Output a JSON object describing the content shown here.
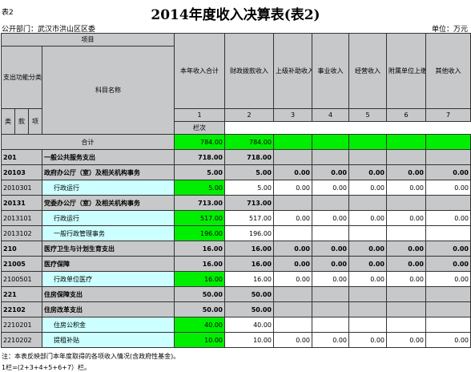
{
  "header": {
    "table_id": "表2",
    "title": "2014年度收入决算表(表2)",
    "department": "公开部门：武汉市洪山区区委",
    "unit": "单位：万元"
  },
  "columns": {
    "item": "项目",
    "func_code": "支出功能分类科目编码",
    "subject_name": "科目名称",
    "total": "本年收入合计",
    "fiscal": "财政拨款收入",
    "superior": "上级补助收入",
    "business": "事业收入",
    "operating": "经营收入",
    "affiliated": "附属单位上缴收入",
    "other": "其他收入",
    "lei": "类",
    "kuan": "款",
    "xiang": "项",
    "col_label": "栏次",
    "col_numbers": [
      "1",
      "2",
      "3",
      "4",
      "5",
      "6",
      "7"
    ]
  },
  "totals": {
    "label": "合计",
    "values": [
      "784.00",
      "784.00",
      "",
      "",
      "",
      "",
      ""
    ]
  },
  "rows": [
    {
      "code": "201",
      "name": "一般公共服务支出",
      "values": [
        "718.00",
        "718.00",
        "",
        "",
        "",
        "",
        ""
      ],
      "level": 1
    },
    {
      "code": "20103",
      "name": "政府办公厅（室）及相关机构事务",
      "values": [
        "5.00",
        "5.00",
        "0.00",
        "0.00",
        "0.00",
        "0.00",
        "0.00"
      ],
      "level": 2
    },
    {
      "code": "2010301",
      "name": "行政运行",
      "values": [
        "5.00",
        "5.00",
        "0.00",
        "0.00",
        "0.00",
        "0.00",
        "0.00"
      ],
      "level": 3
    },
    {
      "code": "20131",
      "name": "党委办公厅（室）及相关机构事务",
      "values": [
        "713.00",
        "713.00",
        "",
        "",
        "",
        "",
        ""
      ],
      "level": 2
    },
    {
      "code": "2013101",
      "name": "行政运行",
      "values": [
        "517.00",
        "517.00",
        "0.00",
        "0.00",
        "0.00",
        "0.00",
        "0.00"
      ],
      "level": 3
    },
    {
      "code": "2013102",
      "name": "一般行政管理事务",
      "values": [
        "196.00",
        "196.00",
        "",
        "",
        "",
        "",
        ""
      ],
      "level": 3
    },
    {
      "code": "210",
      "name": "医疗卫生与计划生育支出",
      "values": [
        "16.00",
        "16.00",
        "0.00",
        "0.00",
        "0.00",
        "0.00",
        "0.00"
      ],
      "level": 1
    },
    {
      "code": "21005",
      "name": "医疗保障",
      "values": [
        "16.00",
        "16.00",
        "0.00",
        "0.00",
        "0.00",
        "0.00",
        "0.00"
      ],
      "level": 2
    },
    {
      "code": "2100501",
      "name": "行政单位医疗",
      "values": [
        "16.00",
        "16.00",
        "0.00",
        "0.00",
        "0.00",
        "0.00",
        "0.00"
      ],
      "level": 3
    },
    {
      "code": "221",
      "name": "住房保障支出",
      "values": [
        "50.00",
        "50.00",
        "",
        "",
        "",
        "",
        ""
      ],
      "level": 1
    },
    {
      "code": "22102",
      "name": "住房改革支出",
      "values": [
        "50.00",
        "50.00",
        "",
        "",
        "",
        "",
        ""
      ],
      "level": 2
    },
    {
      "code": "2210201",
      "name": "住房公积金",
      "values": [
        "40.00",
        "40.00",
        "",
        "",
        "",
        "",
        ""
      ],
      "level": 3
    },
    {
      "code": "2210202",
      "name": "提租补贴",
      "values": [
        "10.00",
        "10.00",
        "0.00",
        "0.00",
        "0.00",
        "0.00",
        "0.00"
      ],
      "level": 3
    }
  ],
  "notes": [
    "注：本表反映部门本年度取得的各项收入情况(含政府性基金)。",
    "1栏=(2+3+4+5+6+7）栏。"
  ]
}
